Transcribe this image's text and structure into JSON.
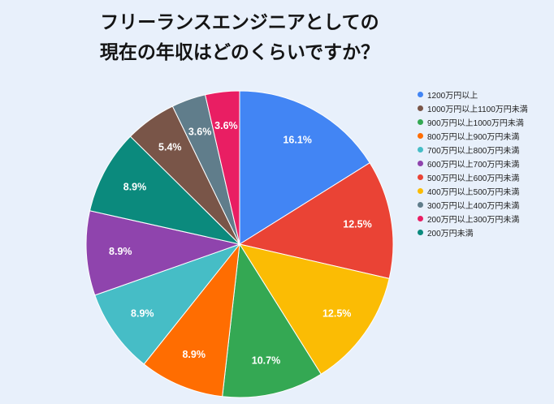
{
  "chart_data": {
    "type": "pie",
    "title": [
      "フリーランスエンジニアとしての",
      "現在の年収はどのくらいですか？"
    ],
    "legend_position": "right",
    "categories": [
      "1200万円以上",
      "1000万円以上1100万円未満",
      "900万円以上1000万円未満",
      "800万円以上900万円未満",
      "700万円以上800万円未満",
      "600万円以上700万円未満",
      "500万円以上600万円未満",
      "400万円以上500万円未満",
      "300万円以上400万円未満",
      "200万円以上300万円未満",
      "200万円未満"
    ],
    "values": [
      16.1,
      5.4,
      10.7,
      8.9,
      8.9,
      8.9,
      12.5,
      12.5,
      3.6,
      3.6,
      8.9
    ],
    "data_labels": [
      "16.1%",
      "5.4%",
      "10.7%",
      "8.9%",
      "8.9%",
      "8.9%",
      "12.5%",
      "12.5%",
      "3.6%",
      "3.6%",
      "8.9%"
    ],
    "colors": [
      "#4285f4",
      "#795548",
      "#34a853",
      "#ff6d01",
      "#46bdc6",
      "#8f44ad",
      "#ea4335",
      "#fbbc04",
      "#607d8b",
      "#e91e63",
      "#0b8a7d"
    ],
    "slice_order_clockwise": [
      0,
      6,
      7,
      2,
      3,
      4,
      5,
      10,
      1,
      8,
      9
    ]
  }
}
